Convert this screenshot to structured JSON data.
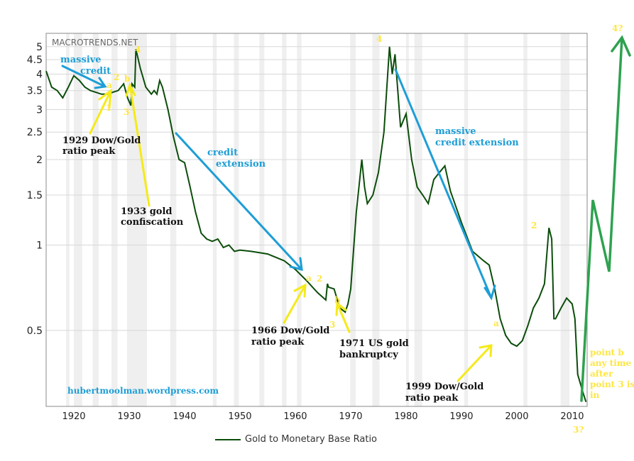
{
  "chart_data": {
    "type": "line",
    "title": "",
    "xlabel": "",
    "ylabel": "",
    "y_scale": "log",
    "xlim": [
      1915,
      2012.7
    ],
    "ylim": [
      0.27,
      5.57
    ],
    "grid": true,
    "legend_placement": "bottom",
    "x_ticks": [
      1920,
      1930,
      1940,
      1950,
      1960,
      1970,
      1980,
      1990,
      2000,
      2010
    ],
    "y_ticks": [
      0.5,
      1,
      1.5,
      2,
      2.5,
      3,
      3.5,
      4,
      4.5,
      5
    ],
    "recession_bands": [
      [
        1918.6,
        1919.2
      ],
      [
        1920,
        1921.5
      ],
      [
        1923.4,
        1924.5
      ],
      [
        1926.8,
        1927.9
      ],
      [
        1929.6,
        1933.2
      ],
      [
        1937.4,
        1938.5
      ],
      [
        1945.1,
        1945.8
      ],
      [
        1948.9,
        1949.8
      ],
      [
        1953.5,
        1954.4
      ],
      [
        1957.6,
        1958.4
      ],
      [
        1960.3,
        1961.1
      ],
      [
        1969.9,
        1970.9
      ],
      [
        1973.9,
        1975.2
      ],
      [
        1980,
        1980.5
      ],
      [
        1981.5,
        1982.9
      ],
      [
        1990.5,
        1991.2
      ],
      [
        2001.2,
        2001.9
      ],
      [
        2007.9,
        2009.5
      ]
    ],
    "series": [
      {
        "name": "Gold to Monetary Base Ratio",
        "color": "#0b4d0b",
        "x": [
          1915,
          1916,
          1917,
          1918,
          1919,
          1920,
          1921,
          1922,
          1923,
          1924,
          1925,
          1926,
          1927,
          1928,
          1929,
          1929.7,
          1930.3,
          1930.5,
          1931,
          1931.2,
          1932,
          1933,
          1934,
          1934.5,
          1935,
          1935.5,
          1936,
          1937,
          1938,
          1939,
          1940,
          1941,
          1942,
          1943,
          1944,
          1945,
          1946,
          1947,
          1948,
          1949,
          1950,
          1952,
          1955,
          1958,
          1960,
          1962,
          1964,
          1965.5,
          1965.8,
          1966,
          1967,
          1968,
          1969,
          1969.5,
          1970,
          1971,
          1972,
          1972.5,
          1973,
          1974,
          1975,
          1976,
          1977,
          1977.5,
          1978,
          1979,
          1980,
          1981,
          1982,
          1983,
          1984,
          1985,
          1986,
          1987,
          1988,
          1990,
          1992,
          1994,
          1995,
          1996,
          1997,
          1998,
          1999,
          2000,
          2001,
          2002,
          2003,
          2004,
          2005,
          2005.8,
          2006.3,
          2006.7,
          2007,
          2008,
          2009,
          2010,
          2010.5,
          2011,
          2012,
          2012.5
        ],
        "values": [
          4.1,
          3.6,
          3.5,
          3.3,
          3.6,
          3.95,
          3.8,
          3.6,
          3.5,
          3.45,
          3.4,
          3.4,
          3.45,
          3.5,
          3.7,
          3.3,
          3.1,
          3.7,
          3.6,
          4.9,
          4.2,
          3.6,
          3.4,
          3.5,
          3.4,
          3.8,
          3.6,
          3.0,
          2.4,
          2.0,
          1.95,
          1.6,
          1.3,
          1.1,
          1.05,
          1.03,
          1.05,
          0.98,
          1.0,
          0.95,
          0.96,
          0.95,
          0.93,
          0.88,
          0.82,
          0.75,
          0.68,
          0.64,
          0.73,
          0.71,
          0.7,
          0.6,
          0.58,
          0.62,
          0.7,
          1.3,
          2.0,
          1.6,
          1.4,
          1.5,
          1.8,
          2.5,
          5.0,
          4.0,
          4.7,
          2.6,
          2.9,
          2.0,
          1.6,
          1.5,
          1.4,
          1.7,
          1.8,
          1.9,
          1.55,
          1.2,
          0.95,
          0.88,
          0.85,
          0.7,
          0.55,
          0.48,
          0.45,
          0.44,
          0.46,
          0.52,
          0.6,
          0.65,
          0.73,
          1.15,
          1.05,
          0.55,
          0.55,
          0.6,
          0.65,
          0.62,
          0.55,
          0.35,
          0.3,
          0.28
        ]
      }
    ]
  },
  "watermark": "MACROTRENDS.NET",
  "legend_label": "Gold to Monetary Base Ratio",
  "annotations": {
    "massive_credit_1": "massive",
    "massive_credit_2": "credit",
    "peak1929_1": "1929 Dow/Gold",
    "peak1929_2": "ratio peak",
    "confiscation_1": "1933 gold",
    "confiscation_2": "confiscation",
    "credit_ext_1": "credit",
    "credit_ext_2": "extension",
    "massive_ext_1": "massive",
    "massive_ext_2": "credit extension",
    "peak1966_1": "1966 Dow/Gold",
    "peak1966_2": "ratio peak",
    "bankruptcy_1": "1971 US gold",
    "bankruptcy_2": "bankruptcy",
    "peak1999_1": "1999 Dow/Gold",
    "peak1999_2": "ratio peak",
    "source": "hubertmoolman.wordpress.com",
    "point_b": [
      "point b",
      "any time",
      "after",
      "point 3 is",
      "in"
    ],
    "wave_labels": {
      "a1": "a",
      "w2_1": "2",
      "b1": "b",
      "w4_1": "4",
      "w3_1": "3",
      "w1_1": "1",
      "w4_2": "4",
      "w2_3": "2",
      "a2": "a",
      "w2_2": "2",
      "b2": "b",
      "w3_2": "3",
      "a3": "a",
      "w3_q": "3?",
      "w4_q": "4?"
    }
  },
  "colors": {
    "annotation_blue": "#1e9ed6",
    "annotation_yellow": "#ffe640",
    "projection_green": "#2ea24f",
    "series": "#0b4d0b"
  }
}
